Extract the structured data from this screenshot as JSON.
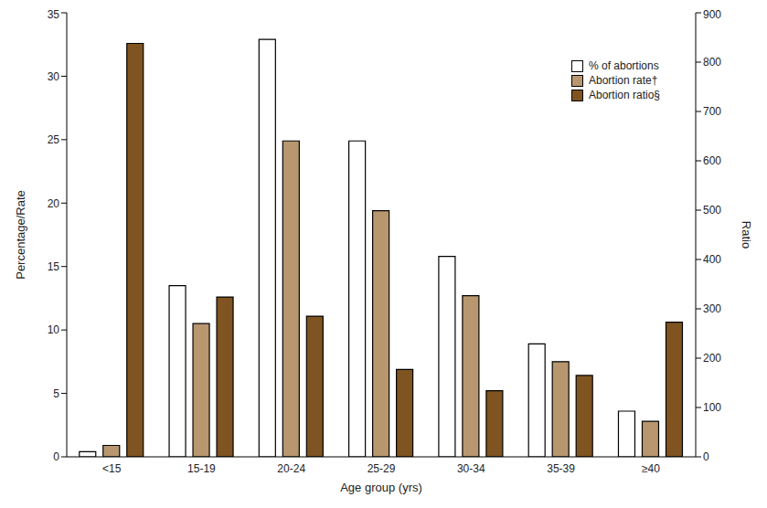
{
  "chart_data": {
    "type": "bar",
    "categories": [
      "<15",
      "15-19",
      "20-24",
      "25-29",
      "30-34",
      "35-39",
      "≥40"
    ],
    "x_label": "Age group (yrs)",
    "y_label": "Percentage/Rate",
    "y2_label": "Ratio",
    "ylim": [
      0,
      35
    ],
    "yticks": [
      0,
      5,
      10,
      15,
      20,
      25,
      30,
      35
    ],
    "y2lim": [
      0,
      900
    ],
    "y2ticks": [
      0,
      100,
      200,
      300,
      400,
      500,
      600,
      700,
      800,
      900
    ],
    "legend": "upper right",
    "grid": false,
    "series": [
      {
        "name": "% of abortions",
        "color": "#ffffff",
        "values": [
          0.4,
          13.5,
          32.9,
          24.9,
          15.8,
          8.9,
          3.6
        ]
      },
      {
        "name": "Abortion rate†",
        "color": "#b8976f",
        "values": [
          0.9,
          10.5,
          24.9,
          19.4,
          12.7,
          7.5,
          2.8
        ]
      },
      {
        "name": "Abortion ratio§",
        "color": "#7f5420",
        "axis": "y2",
        "values": [
          838,
          324,
          285,
          177,
          134,
          165,
          273
        ]
      }
    ]
  }
}
